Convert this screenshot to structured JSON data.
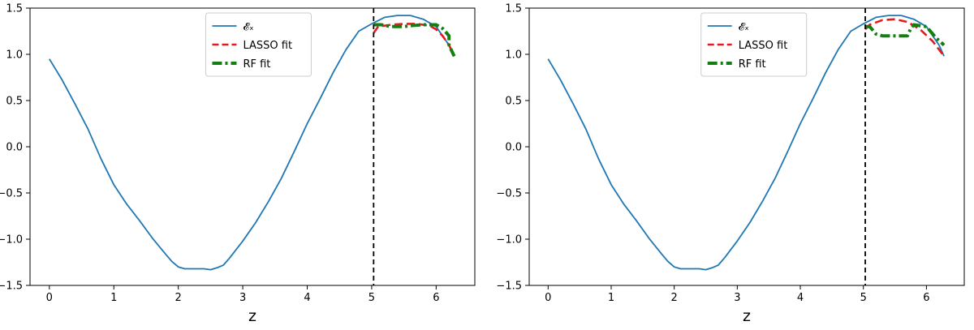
{
  "chart_data": [
    {
      "type": "line",
      "xlabel": "z",
      "ylabel": "",
      "xlim": [
        -0.3,
        6.6
      ],
      "ylim": [
        -1.5,
        1.5
      ],
      "xticks": [
        "0",
        "1",
        "2",
        "3",
        "4",
        "5",
        "6"
      ],
      "yticks": [
        "−1.5",
        "−1.0",
        "−0.5",
        "0.0",
        "0.5",
        "1.0",
        "1.5"
      ],
      "grid": false,
      "legend_position": "upper-center",
      "vline": 5.03,
      "series": [
        {
          "name": "𝓔ₓ",
          "color": "#1f77b4",
          "style": "solid",
          "x": [
            0,
            0.2,
            0.4,
            0.6,
            0.8,
            1.0,
            1.2,
            1.4,
            1.6,
            1.8,
            1.9,
            2.0,
            2.1,
            2.2,
            2.3,
            2.4,
            2.5,
            2.6,
            2.7,
            2.8,
            3.0,
            3.2,
            3.4,
            3.6,
            3.8,
            4.0,
            4.2,
            4.4,
            4.6,
            4.8,
            5.0,
            5.2,
            5.4,
            5.6,
            5.8,
            6.0,
            6.2,
            6.28
          ],
          "y": [
            0.95,
            0.72,
            0.46,
            0.19,
            -0.13,
            -0.41,
            -0.62,
            -0.8,
            -0.99,
            -1.16,
            -1.24,
            -1.3,
            -1.32,
            -1.32,
            -1.32,
            -1.32,
            -1.33,
            -1.31,
            -1.28,
            -1.2,
            -1.02,
            -0.82,
            -0.59,
            -0.34,
            -0.05,
            0.25,
            0.52,
            0.8,
            1.05,
            1.25,
            1.33,
            1.4,
            1.42,
            1.42,
            1.38,
            1.3,
            1.1,
            0.98
          ]
        },
        {
          "name": "LASSO fit",
          "color": "#e41a1c",
          "style": "dashed",
          "x": [
            5.03,
            5.1,
            5.3,
            5.5,
            5.7,
            5.9,
            6.0,
            6.1,
            6.2,
            6.28
          ],
          "y": [
            1.23,
            1.3,
            1.32,
            1.33,
            1.33,
            1.31,
            1.27,
            1.2,
            1.1,
            0.98
          ]
        },
        {
          "name": "RF fit",
          "color": "#118011",
          "style": "dashdot",
          "x": [
            5.03,
            5.15,
            5.3,
            5.4,
            5.5,
            5.6,
            5.8,
            6.0,
            6.1,
            6.2,
            6.2,
            6.28
          ],
          "y": [
            1.32,
            1.32,
            1.3,
            1.3,
            1.3,
            1.31,
            1.32,
            1.32,
            1.28,
            1.2,
            1.1,
            0.98
          ]
        }
      ]
    },
    {
      "type": "line",
      "xlabel": "z",
      "ylabel": "",
      "xlim": [
        -0.3,
        6.6
      ],
      "ylim": [
        -1.5,
        1.5
      ],
      "xticks": [
        "0",
        "1",
        "2",
        "3",
        "4",
        "5",
        "6"
      ],
      "yticks": [
        "−1.5",
        "−1.0",
        "−0.5",
        "0.0",
        "0.5",
        "1.0",
        "1.5"
      ],
      "grid": false,
      "legend_position": "upper-center",
      "vline": 5.03,
      "series": [
        {
          "name": "𝓔ₓ",
          "color": "#1f77b4",
          "style": "solid",
          "x": [
            0,
            0.2,
            0.4,
            0.6,
            0.8,
            1.0,
            1.2,
            1.4,
            1.6,
            1.8,
            1.9,
            2.0,
            2.1,
            2.2,
            2.3,
            2.4,
            2.5,
            2.6,
            2.7,
            2.8,
            3.0,
            3.2,
            3.4,
            3.6,
            3.8,
            4.0,
            4.2,
            4.4,
            4.6,
            4.8,
            5.0,
            5.2,
            5.4,
            5.6,
            5.8,
            6.0,
            6.2,
            6.28
          ],
          "y": [
            0.95,
            0.72,
            0.46,
            0.19,
            -0.13,
            -0.41,
            -0.62,
            -0.8,
            -0.99,
            -1.16,
            -1.24,
            -1.3,
            -1.32,
            -1.32,
            -1.32,
            -1.32,
            -1.33,
            -1.31,
            -1.28,
            -1.2,
            -1.02,
            -0.82,
            -0.59,
            -0.34,
            -0.05,
            0.25,
            0.52,
            0.8,
            1.05,
            1.25,
            1.33,
            1.4,
            1.42,
            1.42,
            1.38,
            1.3,
            1.1,
            0.98
          ]
        },
        {
          "name": "LASSO fit",
          "color": "#e41a1c",
          "style": "dashed",
          "x": [
            5.03,
            5.1,
            5.3,
            5.5,
            5.7,
            5.9,
            6.1,
            6.28
          ],
          "y": [
            1.27,
            1.32,
            1.37,
            1.38,
            1.35,
            1.27,
            1.14,
            0.98
          ]
        },
        {
          "name": "RF fit",
          "color": "#118011",
          "style": "dashdot",
          "x": [
            5.03,
            5.1,
            5.2,
            5.3,
            5.4,
            5.7,
            5.75,
            5.8,
            6.0,
            6.1,
            6.15,
            6.2,
            6.28
          ],
          "y": [
            1.3,
            1.3,
            1.22,
            1.2,
            1.2,
            1.2,
            1.28,
            1.32,
            1.3,
            1.22,
            1.18,
            1.15,
            1.1
          ]
        }
      ]
    }
  ]
}
